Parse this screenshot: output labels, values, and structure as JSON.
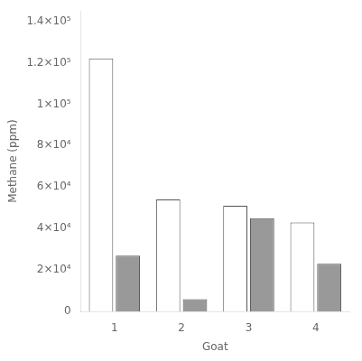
{
  "chart_data": {
    "type": "bar",
    "xlabel": "Goat",
    "ylabel": "Methane (ppm)",
    "categories": [
      "1",
      "2",
      "3",
      "4"
    ],
    "series": [
      {
        "color": "white",
        "values": [
          122000,
          54000,
          51000,
          43000
        ]
      },
      {
        "color": "#999999",
        "values": [
          27000,
          6000,
          45000,
          23000
        ]
      }
    ],
    "ylim": [
      0,
      145000
    ],
    "yticks": [
      0,
      {
        "value": 20000,
        "label": "2×10⁴"
      },
      {
        "value": 40000,
        "label": "4×10⁴"
      },
      {
        "value": 60000,
        "label": "6×10⁴"
      },
      {
        "value": 80000,
        "label": "8×10⁴"
      },
      {
        "value": 100000,
        "label": "1×10⁵"
      },
      {
        "value": 120000,
        "label": "1.2×10⁵"
      },
      {
        "value": 140000,
        "label": "1.4×10⁵"
      }
    ],
    "grid": false
  }
}
